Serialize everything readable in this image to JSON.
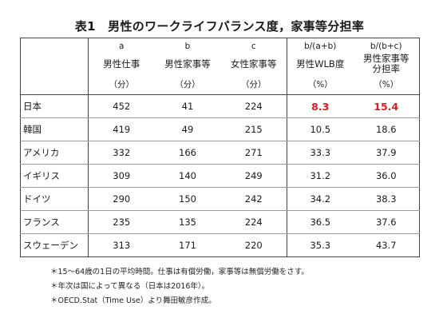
{
  "title": "表1　男性のワークライフバランス度，家事等分担率",
  "headers": {
    "codes": [
      "a",
      "b",
      "c",
      "b/(a+b)",
      "b/(b+c)"
    ],
    "names": [
      "男性仕事",
      "男性家事等",
      "女性家事等",
      "男性WLB度",
      "男性家事等分担率"
    ],
    "units": [
      "（分）",
      "（分）",
      "（分）",
      "（%）",
      "（%）"
    ]
  },
  "rows": [
    {
      "country": "日本",
      "a": "452",
      "b": "41",
      "c": "224",
      "wlb": "8.3",
      "share": "15.4"
    },
    {
      "country": "韓国",
      "a": "419",
      "b": "49",
      "c": "215",
      "wlb": "10.5",
      "share": "18.6"
    },
    {
      "country": "アメリカ",
      "a": "332",
      "b": "166",
      "c": "271",
      "wlb": "33.3",
      "share": "37.9"
    },
    {
      "country": "イギリス",
      "a": "309",
      "b": "140",
      "c": "249",
      "wlb": "31.2",
      "share": "36.0"
    },
    {
      "country": "ドイツ",
      "a": "290",
      "b": "150",
      "c": "242",
      "wlb": "34.2",
      "share": "38.3"
    },
    {
      "country": "フランス",
      "a": "235",
      "b": "135",
      "c": "224",
      "wlb": "36.5",
      "share": "37.6"
    },
    {
      "country": "スウェーデン",
      "a": "313",
      "b": "171",
      "c": "220",
      "wlb": "35.3",
      "share": "43.7"
    }
  ],
  "highlight_color": "#e01b1b",
  "notes": [
    "＊15～64歳の1日の平均時間。仕事は有償労働，家事等は無償労働をさす。",
    "＊年次は国によって異なる（日本は2016年）。",
    "＊OECD.Stat（Time Use）より舞田敏彦作成。"
  ]
}
